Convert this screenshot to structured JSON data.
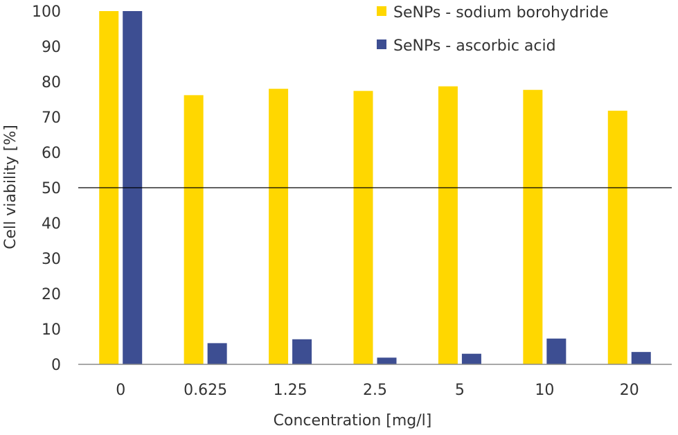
{
  "chart_data": {
    "type": "bar",
    "title": "",
    "xlabel": "Concentration [mg/l]",
    "ylabel": "Cell viability [%]",
    "ylim": [
      0,
      100
    ],
    "yticks": [
      0,
      10,
      20,
      30,
      40,
      50,
      60,
      70,
      80,
      90,
      100
    ],
    "categories": [
      "0",
      "0.625",
      "1.25",
      "2.5",
      "5",
      "10",
      "20"
    ],
    "series": [
      {
        "name": "SeNPs - sodium borohydride",
        "color": "#FFD700",
        "values": [
          100,
          76.2,
          78,
          77.4,
          78.7,
          77.7,
          71.8
        ]
      },
      {
        "name": "SeNPs - ascorbic acid",
        "color": "#3D4E92",
        "values": [
          100,
          6,
          7.1,
          1.9,
          3,
          7.3,
          3.5
        ]
      }
    ],
    "reference_line": {
      "y": 50,
      "color": "#000000"
    },
    "grid": false,
    "legend": "top-right"
  }
}
